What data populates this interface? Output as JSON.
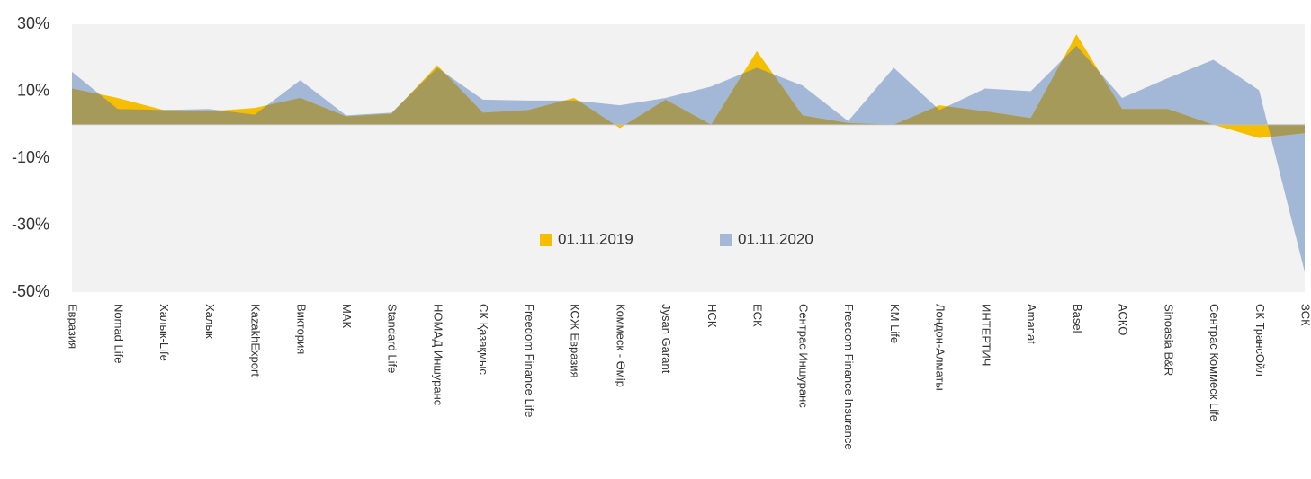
{
  "chart_data": {
    "type": "area",
    "categories": [
      "Евразия",
      "Nomad Life",
      "Халык-Life",
      "Халык",
      "KazakhExport",
      "Виктория",
      "МАК",
      "Standard Life",
      "НОМАД Иншуранс",
      "СК Қазақмыс",
      "Freedom Finance Life",
      "КСЖ Евразия",
      "Коммеск - Өмір",
      "Jysan Garant",
      "НСК",
      "ЕСК",
      "Сентрас Иншуранс",
      "Freedom Finance Insurance",
      "KM Life",
      "Лондон-Алматы",
      "ИНТЕРТИЧ",
      "Amanat",
      "Basel",
      "АСКО",
      "Sinoasia B&R",
      "Сентрас Коммеск Life",
      "СК ТрансОйл",
      "ЗСК"
    ],
    "series": [
      {
        "name": "01.11.2019",
        "color": "#f5bf00",
        "values": [
          10.8,
          8,
          4.4,
          4,
          5,
          8,
          2.5,
          3.3,
          17.8,
          3.6,
          4.4,
          8,
          -1,
          7.5,
          0,
          22,
          2.8,
          0.5,
          0,
          5.8,
          4,
          2,
          27,
          4.7,
          4.7,
          0,
          -4,
          -2.5
        ]
      },
      {
        "name": "01.11.2020",
        "color": "#a3b8d6",
        "values": [
          15.8,
          4.7,
          4.4,
          4.7,
          3,
          13.3,
          2.8,
          3.6,
          17,
          7.5,
          7.2,
          7.2,
          5.8,
          8,
          11.4,
          17,
          11.7,
          1.1,
          17,
          4.4,
          10.8,
          10,
          23.6,
          8,
          13.9,
          19.4,
          10.3,
          -44
        ]
      }
    ],
    "overlap_color": "#a69a5a",
    "ylim": [
      -50,
      30
    ],
    "yticks": [
      {
        "value": 30,
        "label": "30%"
      },
      {
        "value": 10,
        "label": "10%"
      },
      {
        "value": -10,
        "label": "-10%"
      },
      {
        "value": -30,
        "label": "-30%"
      },
      {
        "value": -50,
        "label": "-50%"
      }
    ],
    "legend": "center"
  }
}
